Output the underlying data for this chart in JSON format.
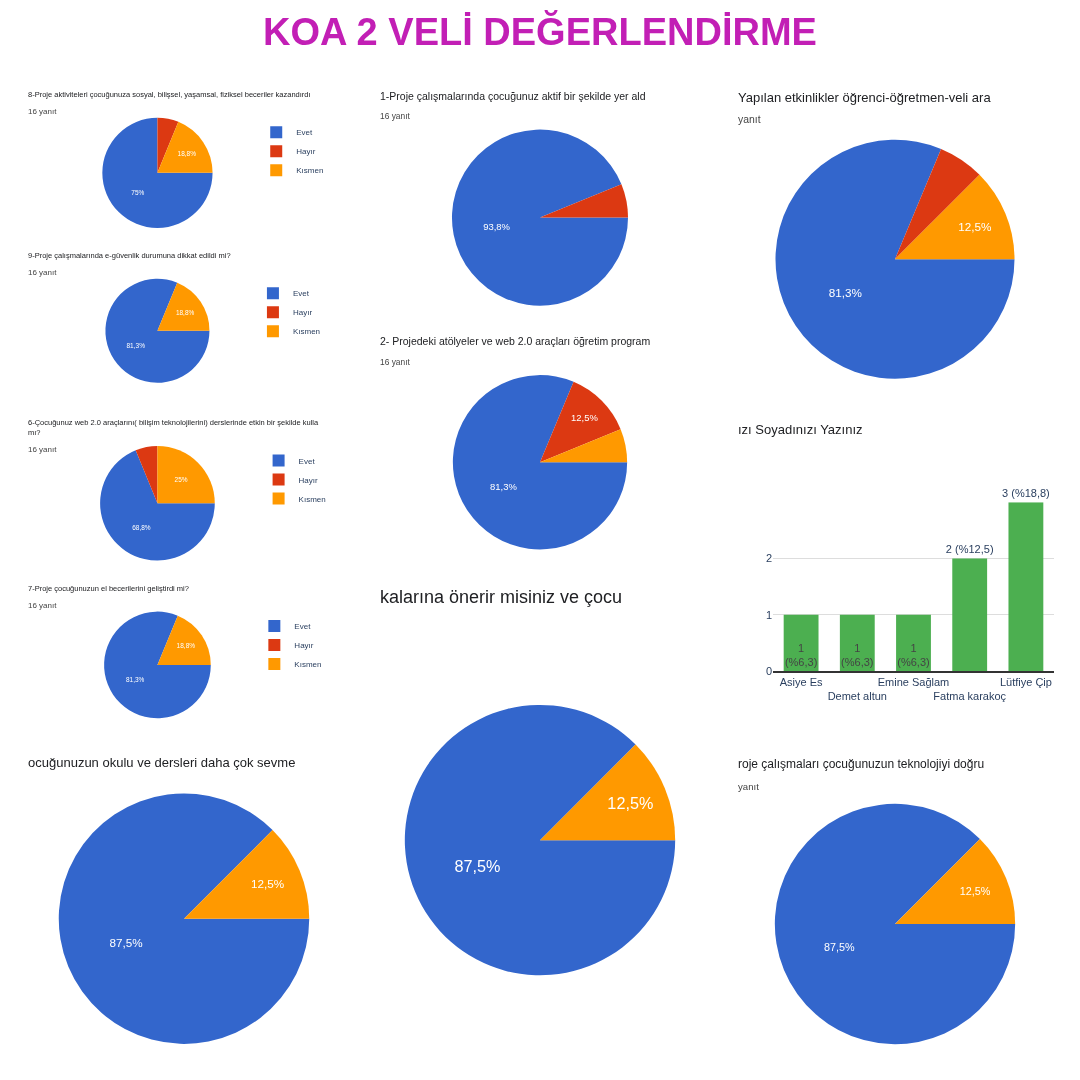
{
  "chart_data": [
    {
      "type": "pie",
      "title": "8-Proje aktiviteleri çocuğunuza sosyal, bilişsel, yaşamsal, fiziksel beceriler kazandırdı",
      "subtitle": "16 yanıt",
      "categories": [
        "Evet",
        "Hayır",
        "Kısmen"
      ],
      "values": [
        75,
        6.2,
        18.8
      ],
      "colors": [
        "#3366cc",
        "#dc3912",
        "#ff9900"
      ],
      "value_labels": [
        "75%",
        null,
        "18,8%"
      ],
      "legend": "right"
    },
    {
      "type": "pie",
      "title": "9-Proje çalışmalarında e-güvenlik durumuna dikkat edildi mi?",
      "subtitle": "16 yanıt",
      "categories": [
        "Evet",
        "Hayır",
        "Kısmen"
      ],
      "values": [
        81.3,
        0,
        18.8
      ],
      "colors": [
        "#3366cc",
        "#dc3912",
        "#ff9900"
      ],
      "value_labels": [
        "81,3%",
        null,
        "18,8%"
      ],
      "legend": "right"
    },
    {
      "type": "pie",
      "title": "6-Çocuğunuz web 2.0 araçlarını( bilişim teknolojilerini) derslerinde etkin bir şekilde kulla\nmı?",
      "subtitle": "16 yanıt",
      "categories": [
        "Evet",
        "Hayır",
        "Kısmen"
      ],
      "values": [
        68.8,
        6.2,
        25
      ],
      "colors": [
        "#3366cc",
        "#dc3912",
        "#ff9900"
      ],
      "value_labels": [
        "68,8%",
        null,
        "25%"
      ],
      "legend": "right"
    },
    {
      "type": "pie",
      "title": "7-Proje çocuğunuzun el becerilerini geliştirdi mi?",
      "subtitle": "16 yanıt",
      "categories": [
        "Evet",
        "Hayır",
        "Kısmen"
      ],
      "values": [
        81.3,
        0,
        18.8
      ],
      "colors": [
        "#3366cc",
        "#dc3912",
        "#ff9900"
      ],
      "value_labels": [
        "81,3%",
        null,
        "18,8%"
      ],
      "legend": "right"
    },
    {
      "type": "pie",
      "title": "ocuğunuzun okulu ve dersleri daha çok sevme",
      "categories": [
        null,
        null
      ],
      "values": [
        87.5,
        12.5
      ],
      "colors": [
        "#3366cc",
        "#ff9900"
      ],
      "value_labels": [
        "87,5%",
        "12,5%"
      ]
    },
    {
      "type": "pie",
      "title": "1-Proje çalışmalarında çocuğunuz aktif bir şekilde yer ald",
      "subtitle": "16 yanıt",
      "categories": [
        null,
        null
      ],
      "values": [
        93.8,
        6.2
      ],
      "colors": [
        "#3366cc",
        "#dc3912"
      ],
      "value_labels": [
        "93,8%",
        null
      ]
    },
    {
      "type": "pie",
      "title": "2- Projedeki atölyeler ve web 2.0 araçları öğretim program",
      "subtitle": "16 yanıt",
      "categories": [
        null,
        null,
        null
      ],
      "values": [
        81.3,
        12.5,
        6.2
      ],
      "colors": [
        "#3366cc",
        "#dc3912",
        "#ff9900"
      ],
      "value_labels": [
        "81,3%",
        "12,5%",
        null
      ]
    },
    {
      "type": "pie",
      "title": "kalarına önerir misiniz ve çocu",
      "categories": [
        null,
        null
      ],
      "values": [
        87.5,
        12.5
      ],
      "colors": [
        "#3366cc",
        "#ff9900"
      ],
      "value_labels": [
        "87,5%",
        "12,5%"
      ]
    },
    {
      "type": "pie",
      "title": "Yapılan etkinlikler öğrenci-öğretmen-veli ara",
      "subtitle": "yanıt",
      "categories": [
        null,
        null,
        null
      ],
      "values": [
        81.3,
        6.2,
        12.5
      ],
      "colors": [
        "#3366cc",
        "#dc3912",
        "#ff9900"
      ],
      "value_labels": [
        "81,3%",
        null,
        "12,5%"
      ]
    },
    {
      "type": "bar",
      "title": "ızı Soyadınızı Yazınız",
      "categories": [
        "Asiye Es",
        "Demet altun",
        "Emine Sağlam",
        "Fatma karakoç",
        "Lütfiye Çip"
      ],
      "values": [
        1,
        1,
        1,
        2,
        3
      ],
      "colors": [
        "#4caf50",
        "#4caf50",
        "#4caf50",
        "#4caf50",
        "#4caf50"
      ],
      "value_labels": [
        "1\n(%6,3)",
        "1\n(%6,3)",
        "1\n(%6,3)",
        "2 (%12,5)",
        "3 (%18,8)"
      ],
      "ylim": [
        0,
        3
      ],
      "yticks": [
        0,
        1,
        2
      ],
      "grid": "y"
    },
    {
      "type": "pie",
      "title": "roje çalışmaları çocuğunuzun teknolojiyi doğru",
      "subtitle": "yanıt",
      "categories": [
        null,
        null
      ],
      "values": [
        87.5,
        12.5
      ],
      "colors": [
        "#3366cc",
        "#ff9900"
      ],
      "value_labels": [
        "87,5%",
        "12,5%"
      ]
    },
    {
      "type": "other",
      "title": "KOA 2 VELİ DEĞERLENDİRME"
    }
  ]
}
